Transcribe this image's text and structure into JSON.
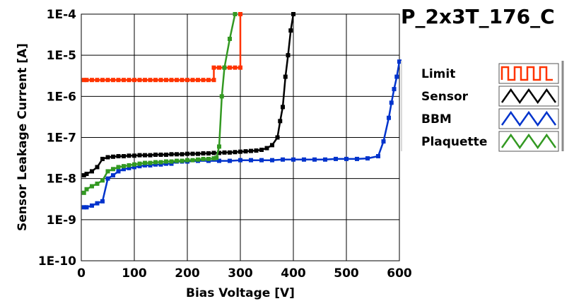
{
  "chart_data": {
    "type": "line",
    "title": "P_2x3T_176_C",
    "xlabel": "Bias Voltage [V]",
    "ylabel": "Sensor Leakage Current [A]",
    "xlim": [
      0,
      600
    ],
    "ylim": [
      1e-10,
      0.0001
    ],
    "y_scale": "log",
    "grid": true,
    "legend_position": "right",
    "x_ticks": [
      0,
      100,
      200,
      300,
      400,
      500,
      600
    ],
    "x_tick_labels": [
      "0",
      "100",
      "200",
      "300",
      "400",
      "500",
      "600"
    ],
    "y_ticks": [
      1e-10,
      1e-09,
      1e-08,
      1e-07,
      1e-06,
      1e-05,
      0.0001
    ],
    "y_tick_labels": [
      "1E-10",
      "1E-9",
      "1E-8",
      "1E-7",
      "1E-6",
      "1E-5",
      "1E-4"
    ],
    "series": [
      {
        "name": "Limit",
        "color": "#ff3300",
        "x": [
          5,
          10,
          20,
          30,
          40,
          50,
          60,
          70,
          80,
          90,
          100,
          110,
          120,
          130,
          140,
          150,
          160,
          170,
          180,
          190,
          200,
          210,
          220,
          230,
          240,
          250,
          250.01,
          260,
          270,
          280,
          290,
          300,
          300.01
        ],
        "y": [
          2.5e-06,
          2.5e-06,
          2.5e-06,
          2.5e-06,
          2.5e-06,
          2.5e-06,
          2.5e-06,
          2.5e-06,
          2.5e-06,
          2.5e-06,
          2.5e-06,
          2.5e-06,
          2.5e-06,
          2.5e-06,
          2.5e-06,
          2.5e-06,
          2.5e-06,
          2.5e-06,
          2.5e-06,
          2.5e-06,
          2.5e-06,
          2.5e-06,
          2.5e-06,
          2.5e-06,
          2.5e-06,
          2.5e-06,
          5e-06,
          5e-06,
          5e-06,
          5e-06,
          5e-06,
          5e-06,
          0.0001
        ]
      },
      {
        "name": "Sensor",
        "color": "#000000",
        "x": [
          5,
          10,
          20,
          30,
          40,
          50,
          60,
          70,
          80,
          90,
          100,
          110,
          120,
          130,
          140,
          150,
          160,
          170,
          180,
          190,
          200,
          210,
          220,
          230,
          240,
          250,
          260,
          270,
          280,
          290,
          300,
          310,
          320,
          330,
          340,
          350,
          360,
          370,
          375,
          380,
          385,
          390,
          395,
          400
        ],
        "y": [
          1.2e-08,
          1.3e-08,
          1.5e-08,
          1.9e-08,
          3e-08,
          3.3e-08,
          3.4e-08,
          3.5e-08,
          3.5e-08,
          3.6e-08,
          3.6e-08,
          3.7e-08,
          3.7e-08,
          3.7e-08,
          3.8e-08,
          3.8e-08,
          3.8e-08,
          3.9e-08,
          3.9e-08,
          3.9e-08,
          4e-08,
          4e-08,
          4e-08,
          4.1e-08,
          4.1e-08,
          4.2e-08,
          4.2e-08,
          4.3e-08,
          4.3e-08,
          4.4e-08,
          4.5e-08,
          4.6e-08,
          4.7e-08,
          4.8e-08,
          5e-08,
          5.5e-08,
          6.5e-08,
          1e-07,
          2.5e-07,
          5.5e-07,
          3e-06,
          1e-05,
          4e-05,
          0.0001
        ]
      },
      {
        "name": "BBM",
        "color": "#0033cc",
        "x": [
          5,
          10,
          20,
          30,
          40,
          50,
          60,
          70,
          80,
          90,
          100,
          110,
          120,
          130,
          140,
          150,
          160,
          170,
          180,
          190,
          200,
          220,
          240,
          260,
          280,
          300,
          320,
          340,
          360,
          380,
          400,
          420,
          440,
          460,
          480,
          500,
          520,
          540,
          560,
          570,
          580,
          585,
          590,
          595,
          600
        ],
        "y": [
          2e-09,
          2e-09,
          2.2e-09,
          2.5e-09,
          2.8e-09,
          1e-08,
          1.2e-08,
          1.5e-08,
          1.7e-08,
          1.8e-08,
          1.9e-08,
          2e-08,
          2.1e-08,
          2.1e-08,
          2.2e-08,
          2.2e-08,
          2.3e-08,
          2.3e-08,
          2.6e-08,
          2.6e-08,
          2.6e-08,
          2.7e-08,
          2.7e-08,
          2.7e-08,
          2.7e-08,
          2.8e-08,
          2.8e-08,
          2.8e-08,
          2.8e-08,
          2.9e-08,
          2.9e-08,
          2.9e-08,
          2.9e-08,
          2.9e-08,
          3e-08,
          3e-08,
          3e-08,
          3.1e-08,
          3.5e-08,
          8e-08,
          3e-07,
          7e-07,
          1.5e-06,
          3e-06,
          7e-06
        ]
      },
      {
        "name": "Plaquette",
        "color": "#339922",
        "x": [
          5,
          10,
          20,
          30,
          40,
          50,
          60,
          70,
          80,
          90,
          100,
          110,
          120,
          130,
          140,
          150,
          160,
          170,
          180,
          190,
          200,
          210,
          220,
          230,
          240,
          250,
          255,
          260,
          265,
          270,
          280,
          290
        ],
        "y": [
          4.5e-09,
          5.5e-09,
          6.5e-09,
          7.5e-09,
          9e-09,
          1.5e-08,
          1.7e-08,
          1.9e-08,
          2e-08,
          2.1e-08,
          2.2e-08,
          2.3e-08,
          2.4e-08,
          2.4e-08,
          2.5e-08,
          2.5e-08,
          2.6e-08,
          2.6e-08,
          2.7e-08,
          2.7e-08,
          2.8e-08,
          2.8e-08,
          2.9e-08,
          3e-08,
          3e-08,
          3.1e-08,
          3.2e-08,
          6e-08,
          1e-06,
          5e-06,
          2.5e-05,
          0.0001
        ]
      }
    ]
  }
}
